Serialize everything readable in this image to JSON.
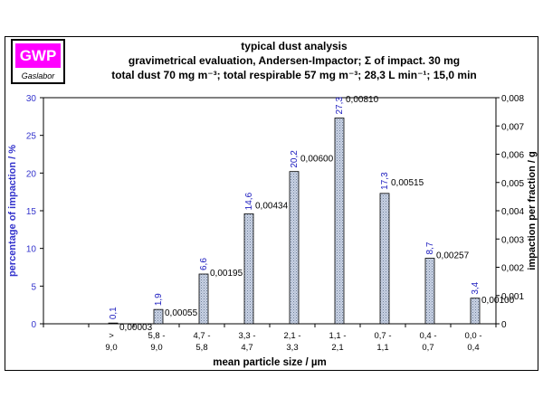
{
  "logo": {
    "brand": "GWP",
    "sub": "Gaslabor",
    "brand_color": "#ff00ff"
  },
  "header": {
    "line1": "typical dust analysis",
    "line2": "gravimetrical evaluation, Andersen-Impactor; Σ of impact. 30 mg",
    "line3": "total dust 70 mg m⁻³;  total respirable 57 mg m⁻³; 28,3 L min⁻¹; 15,0 min"
  },
  "chart_data": {
    "type": "bar",
    "xlabel": "mean particle size / µm",
    "ylabel": "percentage of impaction / %",
    "y2label": "impaction per fraction / g",
    "ylim": [
      0,
      30
    ],
    "y2lim": [
      0,
      0.008
    ],
    "yticks": [
      "0",
      "5",
      "10",
      "15",
      "20",
      "25",
      "30"
    ],
    "y2ticks": [
      "0",
      "0,001",
      "0,002",
      "0,003",
      "0,004",
      "0,005",
      "0,006",
      "0,007",
      "0,008"
    ],
    "categories": [
      [
        "",
        ""
      ],
      [
        ">",
        "9,0"
      ],
      [
        "5,8 -",
        "9,0"
      ],
      [
        "4,7 -",
        "5,8"
      ],
      [
        "3,3 -",
        "4,7"
      ],
      [
        "2,1 -",
        "3,3"
      ],
      [
        "1,1 -",
        "2,1"
      ],
      [
        "0,7 -",
        "1,1"
      ],
      [
        "0,4 -",
        "0,7"
      ],
      [
        "0,0 -",
        "0,4"
      ]
    ],
    "series": [
      {
        "name": "percentage of impaction",
        "values": [
          null,
          0.1,
          1.9,
          6.6,
          14.6,
          20.2,
          27.3,
          17.3,
          8.7,
          3.4
        ],
        "labels": [
          "",
          "0,1",
          "1,9",
          "6,6",
          "14,6",
          "20,2",
          "27,3",
          "17,3",
          "8,7",
          "3,4"
        ]
      },
      {
        "name": "impaction per fraction",
        "values": [
          null,
          3e-05,
          0.00055,
          0.00195,
          0.00434,
          0.006,
          0.0081,
          0.00515,
          0.00257,
          0.001
        ],
        "labels": [
          "",
          "0,00003",
          "0,00055",
          "0,00195",
          "0,00434",
          "0,00600",
          "0,00810",
          "0,00515",
          "0,00257",
          "0,00100"
        ]
      }
    ],
    "colors": {
      "left_axis": "#3333cc",
      "bar_label": "#2020c0",
      "bar_fill": "#b8c4d8"
    }
  }
}
